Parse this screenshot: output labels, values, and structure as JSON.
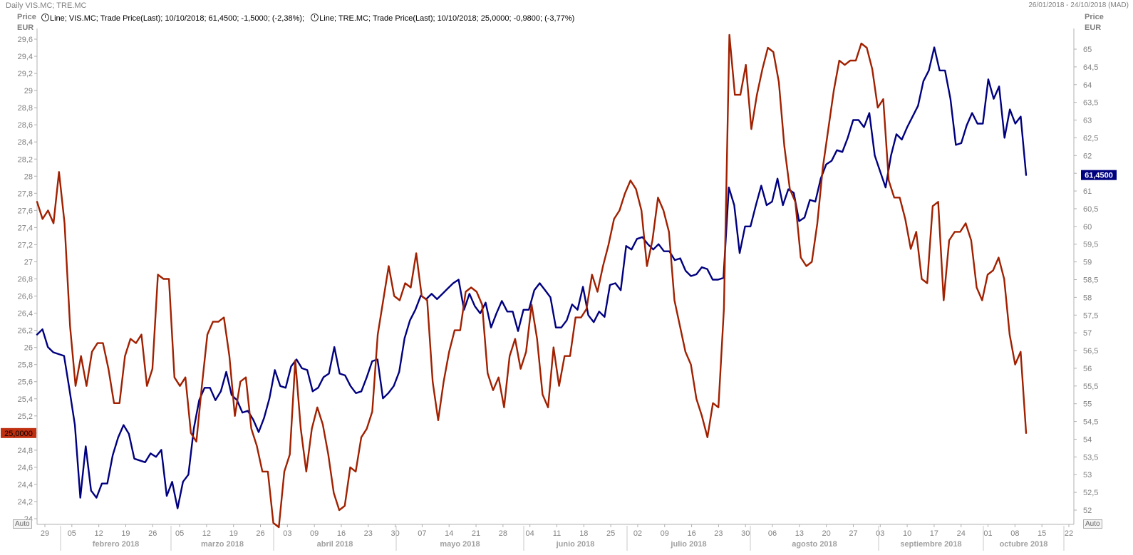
{
  "window": {
    "title": "Daily VIS.MC; TRE.MC",
    "date_range": "26/01/2018 - 24/10/2018 (MAD)"
  },
  "legend": [
    {
      "text": "Line; VIS.MC; Trade Price(Last);  10/10/2018; 61,4500; -1,5000; (-2,38%);",
      "icon": "clock-icon"
    },
    {
      "text": "Line; TRE.MC; Trade Price(Last);  10/10/2018; 25,0000; -0,9800; (-3,77%)",
      "icon": "clock-icon"
    }
  ],
  "left_axis_header": {
    "line1": "Price",
    "line2": "EUR"
  },
  "right_axis_header": {
    "line1": "Price",
    "line2": "EUR"
  },
  "auto_left": "Auto",
  "auto_right": "Auto",
  "colors": {
    "vis": "#00007f",
    "tre": "#a02000",
    "grid": "#e6e6e6",
    "axis_text": "#808080"
  },
  "chart_data": {
    "type": "line",
    "x_ticks": [
      "29",
      "05",
      "12",
      "19",
      "26",
      "05",
      "12",
      "19",
      "26",
      "03",
      "09",
      "16",
      "23",
      "30",
      "07",
      "14",
      "21",
      "28",
      "04",
      "11",
      "18",
      "25",
      "02",
      "09",
      "16",
      "23",
      "30",
      "06",
      "13",
      "20",
      "27",
      "03",
      "10",
      "17",
      "24",
      "01",
      "08",
      "15",
      "22"
    ],
    "months": [
      "febrero 2018",
      "marzo 2018",
      "abril 2018",
      "mayo 2018",
      "junio 2018",
      "julio 2018",
      "agosto 2018",
      "septiembre 2018",
      "octubre 2018"
    ],
    "left_axis": {
      "min": 24.0,
      "max": 29.6,
      "step": 0.2,
      "ticks": [
        "24",
        "24,2",
        "24,4",
        "24,6",
        "24,8",
        "25",
        "25,2",
        "25,4",
        "25,6",
        "25,8",
        "26",
        "26,2",
        "26,4",
        "26,6",
        "26,8",
        "27",
        "27,2",
        "27,4",
        "27,6",
        "27,8",
        "28",
        "28,2",
        "28,4",
        "28,6",
        "28,8",
        "29",
        "29,2",
        "29,4",
        "29,6"
      ]
    },
    "right_axis": {
      "min": 52,
      "max": 65,
      "step": 0.5,
      "ticks": [
        "52",
        "52,5",
        "53",
        "53,5",
        "54",
        "54,5",
        "55",
        "55,5",
        "56",
        "56,5",
        "57",
        "57,5",
        "58",
        "58,5",
        "59",
        "59,5",
        "60",
        "60,5",
        "61",
        "61,5",
        "62",
        "62,5",
        "63",
        "63,5",
        "64",
        "64,5",
        "65"
      ]
    },
    "series": [
      {
        "name": "VIS.MC",
        "axis": "right",
        "last_label": "61,4500",
        "values": [
          56.95,
          57.1,
          56.6,
          56.45,
          56.4,
          56.35,
          55.4,
          54.4,
          52.35,
          53.8,
          52.55,
          52.35,
          52.75,
          52.75,
          53.55,
          54.05,
          54.4,
          54.15,
          53.45,
          53.4,
          53.35,
          53.6,
          53.5,
          53.7,
          52.4,
          52.8,
          52.05,
          52.8,
          53.0,
          54.3,
          55.1,
          55.45,
          55.45,
          55.1,
          55.35,
          55.9,
          55.25,
          55.1,
          54.75,
          54.8,
          54.55,
          54.2,
          54.6,
          55.15,
          55.95,
          55.5,
          55.45,
          56.05,
          56.25,
          56.0,
          55.95,
          55.35,
          55.45,
          55.75,
          55.85,
          56.6,
          55.85,
          55.8,
          55.5,
          55.3,
          55.35,
          55.75,
          56.2,
          56.25,
          55.15,
          55.3,
          55.5,
          55.9,
          56.85,
          57.35,
          57.65,
          58.05,
          57.95,
          58.1,
          57.95,
          58.1,
          58.25,
          58.4,
          58.5,
          57.65,
          58.1,
          57.75,
          57.55,
          57.85,
          57.15,
          57.55,
          57.9,
          57.6,
          57.6,
          57.05,
          57.65,
          57.65,
          58.2,
          58.4,
          58.2,
          58.0,
          57.15,
          57.15,
          57.35,
          57.8,
          57.65,
          58.3,
          57.5,
          57.3,
          57.6,
          57.45,
          58.35,
          58.4,
          58.2,
          59.45,
          59.35,
          59.65,
          59.7,
          59.5,
          59.35,
          59.5,
          59.3,
          59.3,
          59.05,
          59.1,
          58.75,
          58.6,
          58.65,
          58.85,
          58.8,
          58.5,
          58.5,
          58.55,
          61.1,
          60.6,
          59.25,
          60.0,
          60.0,
          60.6,
          61.15,
          60.6,
          60.7,
          61.35,
          60.6,
          61.05,
          60.95,
          60.15,
          60.25,
          60.75,
          60.7,
          61.35,
          61.75,
          61.85,
          62.15,
          62.1,
          62.5,
          63.0,
          63.0,
          62.8,
          63.2,
          62.0,
          61.55,
          61.1,
          62.0,
          62.6,
          62.45,
          62.8,
          63.1,
          63.4,
          64.1,
          64.4,
          65.05,
          64.4,
          64.4,
          63.6,
          62.3,
          62.35,
          62.85,
          63.2,
          62.9,
          62.9,
          64.15,
          63.6,
          63.95,
          62.5,
          63.3,
          62.9,
          63.1,
          61.45
        ]
      },
      {
        "name": "TRE.MC",
        "axis": "left",
        "last_label": "25,0000",
        "values": [
          27.7,
          27.5,
          27.6,
          27.45,
          28.05,
          27.45,
          26.25,
          25.55,
          25.9,
          25.55,
          25.95,
          26.05,
          26.05,
          25.75,
          25.35,
          25.35,
          25.9,
          26.1,
          26.05,
          26.15,
          25.55,
          25.75,
          26.85,
          26.8,
          26.8,
          25.65,
          25.55,
          25.65,
          25.0,
          24.9,
          25.55,
          26.15,
          26.3,
          26.3,
          26.35,
          25.9,
          25.2,
          25.6,
          25.65,
          25.05,
          24.85,
          24.55,
          24.55,
          23.95,
          23.9,
          24.55,
          24.75,
          25.85,
          25.05,
          24.55,
          25.05,
          25.3,
          25.1,
          24.75,
          24.3,
          24.1,
          24.15,
          24.6,
          24.55,
          24.95,
          25.05,
          25.25,
          26.15,
          26.55,
          26.95,
          26.6,
          26.55,
          26.75,
          26.7,
          27.1,
          26.6,
          26.55,
          25.6,
          25.15,
          25.6,
          25.95,
          26.2,
          26.2,
          26.65,
          26.7,
          26.65,
          26.5,
          25.7,
          25.5,
          25.65,
          25.3,
          25.9,
          26.1,
          25.75,
          25.95,
          26.5,
          26.1,
          25.45,
          25.3,
          26.0,
          25.55,
          25.9,
          25.9,
          26.35,
          26.35,
          26.45,
          26.85,
          26.65,
          26.95,
          27.2,
          27.5,
          27.6,
          27.8,
          27.95,
          27.85,
          27.6,
          26.95,
          27.25,
          27.75,
          27.6,
          27.35,
          26.55,
          26.25,
          25.95,
          25.8,
          25.4,
          25.2,
          24.95,
          25.35,
          25.3,
          26.45,
          29.65,
          28.95,
          28.95,
          29.3,
          28.55,
          28.95,
          29.25,
          29.5,
          29.45,
          29.1,
          28.35,
          27.85,
          27.7,
          27.05,
          26.95,
          27.0,
          27.45,
          28.1,
          28.55,
          29.0,
          29.35,
          29.3,
          29.35,
          29.35,
          29.55,
          29.5,
          29.25,
          28.8,
          28.9,
          27.95,
          27.75,
          27.75,
          27.5,
          27.15,
          27.35,
          26.8,
          26.75,
          27.65,
          27.7,
          26.55,
          27.25,
          27.35,
          27.35,
          27.45,
          27.25,
          26.7,
          26.55,
          26.85,
          26.9,
          27.05,
          26.8,
          26.15,
          25.8,
          25.95,
          25.0
        ]
      }
    ]
  }
}
